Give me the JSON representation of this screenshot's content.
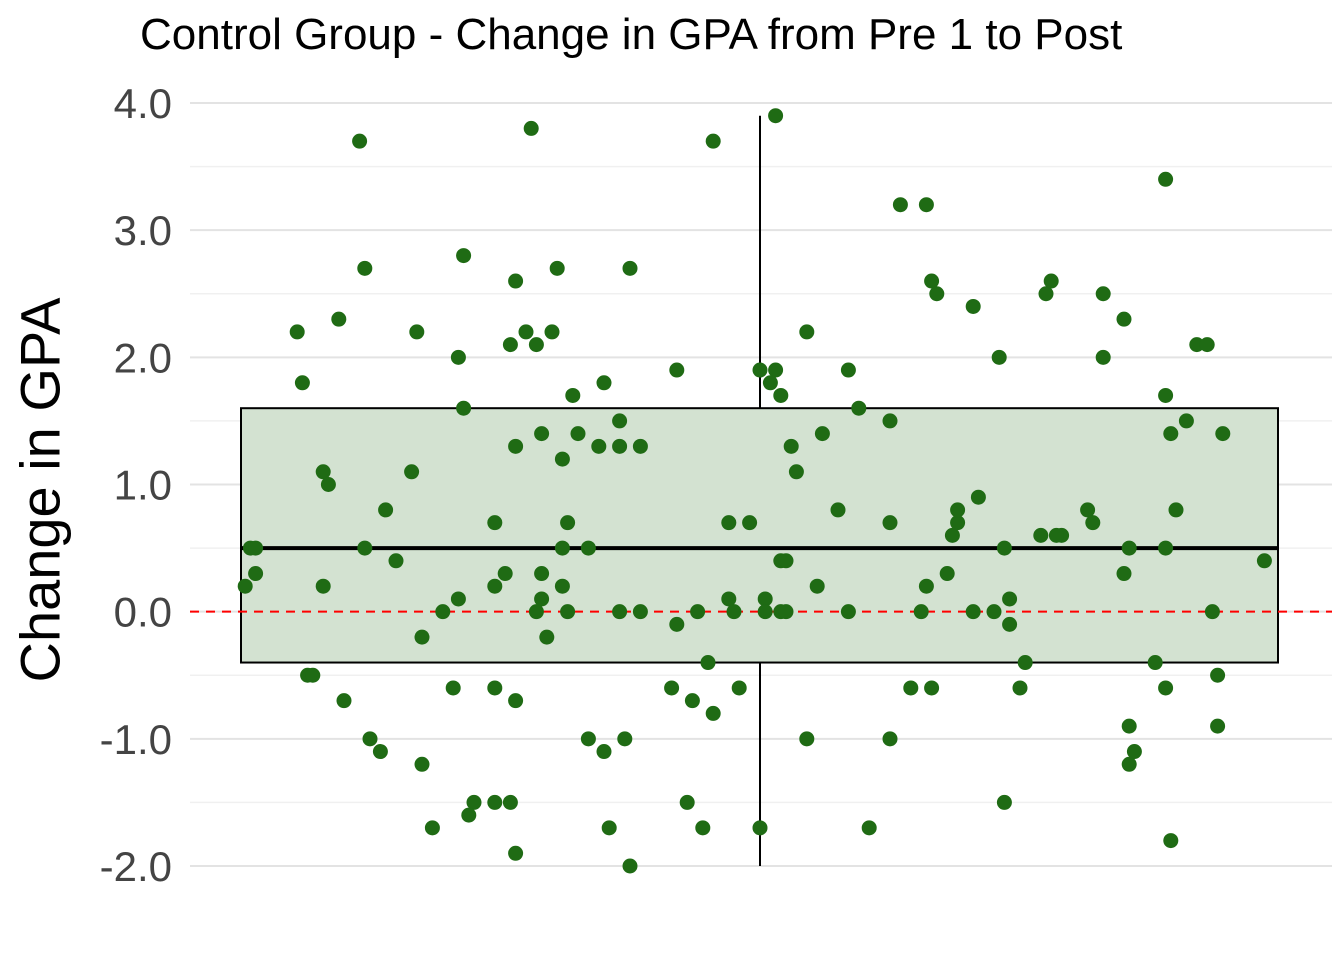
{
  "chart_data": {
    "type": "box",
    "title": "Control Group - Change in GPA from Pre 1 to Post",
    "xlabel": "",
    "ylabel": "Change in GPA",
    "ylim": [
      -2.0,
      4.0
    ],
    "yticks": [
      "4.0",
      "3.0",
      "2.0",
      "1.0",
      "0.0",
      "-1.0",
      "-2.0"
    ],
    "ytick_values": [
      4.0,
      3.0,
      2.0,
      1.0,
      0.0,
      -1.0,
      -2.0
    ],
    "grid": true,
    "reference_line": {
      "y": 0.0,
      "style": "dashed",
      "color": "#ff0000"
    },
    "box": {
      "min": -2.0,
      "q1": -0.4,
      "median": 0.5,
      "q3": 1.6,
      "max": 3.9,
      "fill": "#d3e2d1",
      "stroke": "#000000"
    },
    "point_color": "#1f6b14",
    "points": [
      {
        "jitter": -0.77,
        "y": 3.7
      },
      {
        "jitter": -0.44,
        "y": 3.8
      },
      {
        "jitter": -0.09,
        "y": 3.7
      },
      {
        "jitter": 0.03,
        "y": 3.9
      },
      {
        "jitter": 0.78,
        "y": 3.4
      },
      {
        "jitter": 0.27,
        "y": 3.2
      },
      {
        "jitter": 0.32,
        "y": 3.2
      },
      {
        "jitter": -0.76,
        "y": 2.7
      },
      {
        "jitter": -0.57,
        "y": 2.8
      },
      {
        "jitter": -0.47,
        "y": 2.6
      },
      {
        "jitter": -0.39,
        "y": 2.7
      },
      {
        "jitter": -0.25,
        "y": 2.7
      },
      {
        "jitter": 0.33,
        "y": 2.6
      },
      {
        "jitter": 0.34,
        "y": 2.5
      },
      {
        "jitter": 0.41,
        "y": 2.4
      },
      {
        "jitter": 0.55,
        "y": 2.5
      },
      {
        "jitter": 0.56,
        "y": 2.6
      },
      {
        "jitter": 0.66,
        "y": 2.5
      },
      {
        "jitter": -0.89,
        "y": 2.2
      },
      {
        "jitter": -0.81,
        "y": 2.3
      },
      {
        "jitter": -0.66,
        "y": 2.2
      },
      {
        "jitter": -0.58,
        "y": 2.0
      },
      {
        "jitter": -0.48,
        "y": 2.1
      },
      {
        "jitter": -0.45,
        "y": 2.2
      },
      {
        "jitter": -0.43,
        "y": 2.1
      },
      {
        "jitter": -0.4,
        "y": 2.2
      },
      {
        "jitter": 0.09,
        "y": 2.2
      },
      {
        "jitter": 0.46,
        "y": 2.0
      },
      {
        "jitter": 0.7,
        "y": 2.3
      },
      {
        "jitter": 0.66,
        "y": 2.0
      },
      {
        "jitter": 0.84,
        "y": 2.1
      },
      {
        "jitter": 0.86,
        "y": 2.1
      },
      {
        "jitter": -0.88,
        "y": 1.8
      },
      {
        "jitter": -0.3,
        "y": 1.8
      },
      {
        "jitter": -0.16,
        "y": 1.9
      },
      {
        "jitter": 0.0,
        "y": 1.9
      },
      {
        "jitter": 0.03,
        "y": 1.9
      },
      {
        "jitter": 0.02,
        "y": 1.8
      },
      {
        "jitter": 0.04,
        "y": 1.7
      },
      {
        "jitter": 0.17,
        "y": 1.9
      },
      {
        "jitter": 0.78,
        "y": 1.7
      },
      {
        "jitter": -0.57,
        "y": 1.6
      },
      {
        "jitter": -0.36,
        "y": 1.7
      },
      {
        "jitter": 0.19,
        "y": 1.6
      },
      {
        "jitter": 0.25,
        "y": 1.5
      },
      {
        "jitter": 0.82,
        "y": 1.5
      },
      {
        "jitter": -0.47,
        "y": 1.3
      },
      {
        "jitter": -0.42,
        "y": 1.4
      },
      {
        "jitter": -0.35,
        "y": 1.4
      },
      {
        "jitter": -0.31,
        "y": 1.3
      },
      {
        "jitter": -0.27,
        "y": 1.5
      },
      {
        "jitter": -0.27,
        "y": 1.3
      },
      {
        "jitter": -0.23,
        "y": 1.3
      },
      {
        "jitter": 0.06,
        "y": 1.3
      },
      {
        "jitter": 0.12,
        "y": 1.4
      },
      {
        "jitter": 0.79,
        "y": 1.4
      },
      {
        "jitter": 0.89,
        "y": 1.4
      },
      {
        "jitter": -0.67,
        "y": 1.1
      },
      {
        "jitter": -0.84,
        "y": 1.1
      },
      {
        "jitter": -0.83,
        "y": 1.0
      },
      {
        "jitter": 0.07,
        "y": 1.1
      },
      {
        "jitter": -0.38,
        "y": 1.2
      },
      {
        "jitter": 0.42,
        "y": 0.9
      },
      {
        "jitter": -0.72,
        "y": 0.8
      },
      {
        "jitter": -0.51,
        "y": 0.7
      },
      {
        "jitter": -0.37,
        "y": 0.7
      },
      {
        "jitter": -0.06,
        "y": 0.7
      },
      {
        "jitter": -0.02,
        "y": 0.7
      },
      {
        "jitter": 0.15,
        "y": 0.8
      },
      {
        "jitter": 0.25,
        "y": 0.7
      },
      {
        "jitter": 0.38,
        "y": 0.7
      },
      {
        "jitter": 0.38,
        "y": 0.8
      },
      {
        "jitter": 0.37,
        "y": 0.6
      },
      {
        "jitter": 0.58,
        "y": 0.6
      },
      {
        "jitter": 0.54,
        "y": 0.6
      },
      {
        "jitter": 0.57,
        "y": 0.6
      },
      {
        "jitter": 0.63,
        "y": 0.8
      },
      {
        "jitter": 0.64,
        "y": 0.7
      },
      {
        "jitter": 0.71,
        "y": 0.5
      },
      {
        "jitter": 0.8,
        "y": 0.8
      },
      {
        "jitter": -0.98,
        "y": 0.5
      },
      {
        "jitter": -0.97,
        "y": 0.5
      },
      {
        "jitter": -0.7,
        "y": 0.4
      },
      {
        "jitter": -0.76,
        "y": 0.5
      },
      {
        "jitter": -0.38,
        "y": 0.5
      },
      {
        "jitter": -0.33,
        "y": 0.5
      },
      {
        "jitter": 0.04,
        "y": 0.4
      },
      {
        "jitter": 0.05,
        "y": 0.4
      },
      {
        "jitter": 0.47,
        "y": 0.5
      },
      {
        "jitter": 0.78,
        "y": 0.5
      },
      {
        "jitter": 0.97,
        "y": 0.4
      },
      {
        "jitter": -0.97,
        "y": 0.3
      },
      {
        "jitter": -0.49,
        "y": 0.3
      },
      {
        "jitter": -0.42,
        "y": 0.3
      },
      {
        "jitter": 0.36,
        "y": 0.3
      },
      {
        "jitter": 0.7,
        "y": 0.3
      },
      {
        "jitter": -0.99,
        "y": 0.2
      },
      {
        "jitter": -0.84,
        "y": 0.2
      },
      {
        "jitter": -0.51,
        "y": 0.2
      },
      {
        "jitter": -0.38,
        "y": 0.2
      },
      {
        "jitter": 0.11,
        "y": 0.2
      },
      {
        "jitter": 0.32,
        "y": 0.2
      },
      {
        "jitter": -0.58,
        "y": 0.1
      },
      {
        "jitter": -0.42,
        "y": 0.1
      },
      {
        "jitter": -0.06,
        "y": 0.1
      },
      {
        "jitter": 0.01,
        "y": 0.1
      },
      {
        "jitter": 0.48,
        "y": 0.1
      },
      {
        "jitter": -0.61,
        "y": 0.0
      },
      {
        "jitter": -0.43,
        "y": 0.0
      },
      {
        "jitter": -0.37,
        "y": 0.0
      },
      {
        "jitter": -0.27,
        "y": 0.0
      },
      {
        "jitter": -0.23,
        "y": 0.0
      },
      {
        "jitter": -0.12,
        "y": 0.0
      },
      {
        "jitter": -0.05,
        "y": 0.0
      },
      {
        "jitter": 0.01,
        "y": 0.0
      },
      {
        "jitter": 0.04,
        "y": 0.0
      },
      {
        "jitter": 0.17,
        "y": 0.0
      },
      {
        "jitter": 0.31,
        "y": 0.0
      },
      {
        "jitter": 0.41,
        "y": 0.0
      },
      {
        "jitter": 0.45,
        "y": 0.0
      },
      {
        "jitter": 0.87,
        "y": 0.0
      },
      {
        "jitter": 0.05,
        "y": 0.0
      },
      {
        "jitter": -0.65,
        "y": -0.2
      },
      {
        "jitter": -0.41,
        "y": -0.2
      },
      {
        "jitter": -0.16,
        "y": -0.1
      },
      {
        "jitter": 0.48,
        "y": -0.1
      },
      {
        "jitter": -0.1,
        "y": -0.4
      },
      {
        "jitter": 0.51,
        "y": -0.4
      },
      {
        "jitter": 0.76,
        "y": -0.4
      },
      {
        "jitter": -0.87,
        "y": -0.5
      },
      {
        "jitter": -0.86,
        "y": -0.5
      },
      {
        "jitter": 0.88,
        "y": -0.5
      },
      {
        "jitter": -0.59,
        "y": -0.6
      },
      {
        "jitter": -0.51,
        "y": -0.6
      },
      {
        "jitter": -0.17,
        "y": -0.6
      },
      {
        "jitter": -0.04,
        "y": -0.6
      },
      {
        "jitter": 0.29,
        "y": -0.6
      },
      {
        "jitter": 0.33,
        "y": -0.6
      },
      {
        "jitter": 0.5,
        "y": -0.6
      },
      {
        "jitter": 0.78,
        "y": -0.6
      },
      {
        "jitter": -0.8,
        "y": -0.7
      },
      {
        "jitter": -0.47,
        "y": -0.7
      },
      {
        "jitter": -0.13,
        "y": -0.7
      },
      {
        "jitter": -0.09,
        "y": -0.8
      },
      {
        "jitter": -0.75,
        "y": -1.0
      },
      {
        "jitter": -0.33,
        "y": -1.0
      },
      {
        "jitter": -0.26,
        "y": -1.0
      },
      {
        "jitter": 0.09,
        "y": -1.0
      },
      {
        "jitter": 0.25,
        "y": -1.0
      },
      {
        "jitter": -0.73,
        "y": -1.1
      },
      {
        "jitter": -0.3,
        "y": -1.1
      },
      {
        "jitter": 0.72,
        "y": -1.1
      },
      {
        "jitter": 0.71,
        "y": -0.9
      },
      {
        "jitter": 0.88,
        "y": -0.9
      },
      {
        "jitter": -0.65,
        "y": -1.2
      },
      {
        "jitter": 0.71,
        "y": -1.2
      },
      {
        "jitter": -0.55,
        "y": -1.5
      },
      {
        "jitter": -0.51,
        "y": -1.5
      },
      {
        "jitter": -0.48,
        "y": -1.5
      },
      {
        "jitter": -0.14,
        "y": -1.5
      },
      {
        "jitter": 0.47,
        "y": -1.5
      },
      {
        "jitter": -0.63,
        "y": -1.7
      },
      {
        "jitter": -0.56,
        "y": -1.6
      },
      {
        "jitter": -0.29,
        "y": -1.7
      },
      {
        "jitter": -0.11,
        "y": -1.7
      },
      {
        "jitter": 0.0,
        "y": -1.7
      },
      {
        "jitter": 0.21,
        "y": -1.7
      },
      {
        "jitter": -0.47,
        "y": -1.9
      },
      {
        "jitter": 0.79,
        "y": -1.8
      },
      {
        "jitter": -0.25,
        "y": -2.0
      }
    ]
  }
}
